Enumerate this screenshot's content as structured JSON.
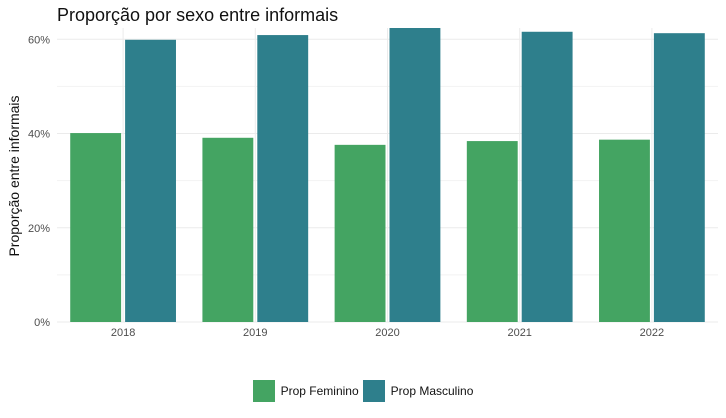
{
  "chart_data": {
    "type": "bar",
    "title": "Proporção por sexo entre informais",
    "xlabel": "",
    "ylabel": "Proporção entre informais",
    "categories": [
      "2018",
      "2019",
      "2020",
      "2021",
      "2022"
    ],
    "series": [
      {
        "name": "Prop Feminino",
        "color": "#44a462",
        "values": [
          40.1,
          39.1,
          37.6,
          38.4,
          38.7
        ]
      },
      {
        "name": "Prop Masculino",
        "color": "#2e7f8c",
        "values": [
          59.9,
          60.9,
          62.4,
          61.6,
          61.3
        ]
      }
    ],
    "ylim": [
      0,
      62.4
    ],
    "yticks": [
      "0%",
      "20%",
      "40%",
      "60%"
    ],
    "ytick_values": [
      0,
      20,
      40,
      60
    ],
    "grid": true,
    "legend_position": "bottom"
  }
}
